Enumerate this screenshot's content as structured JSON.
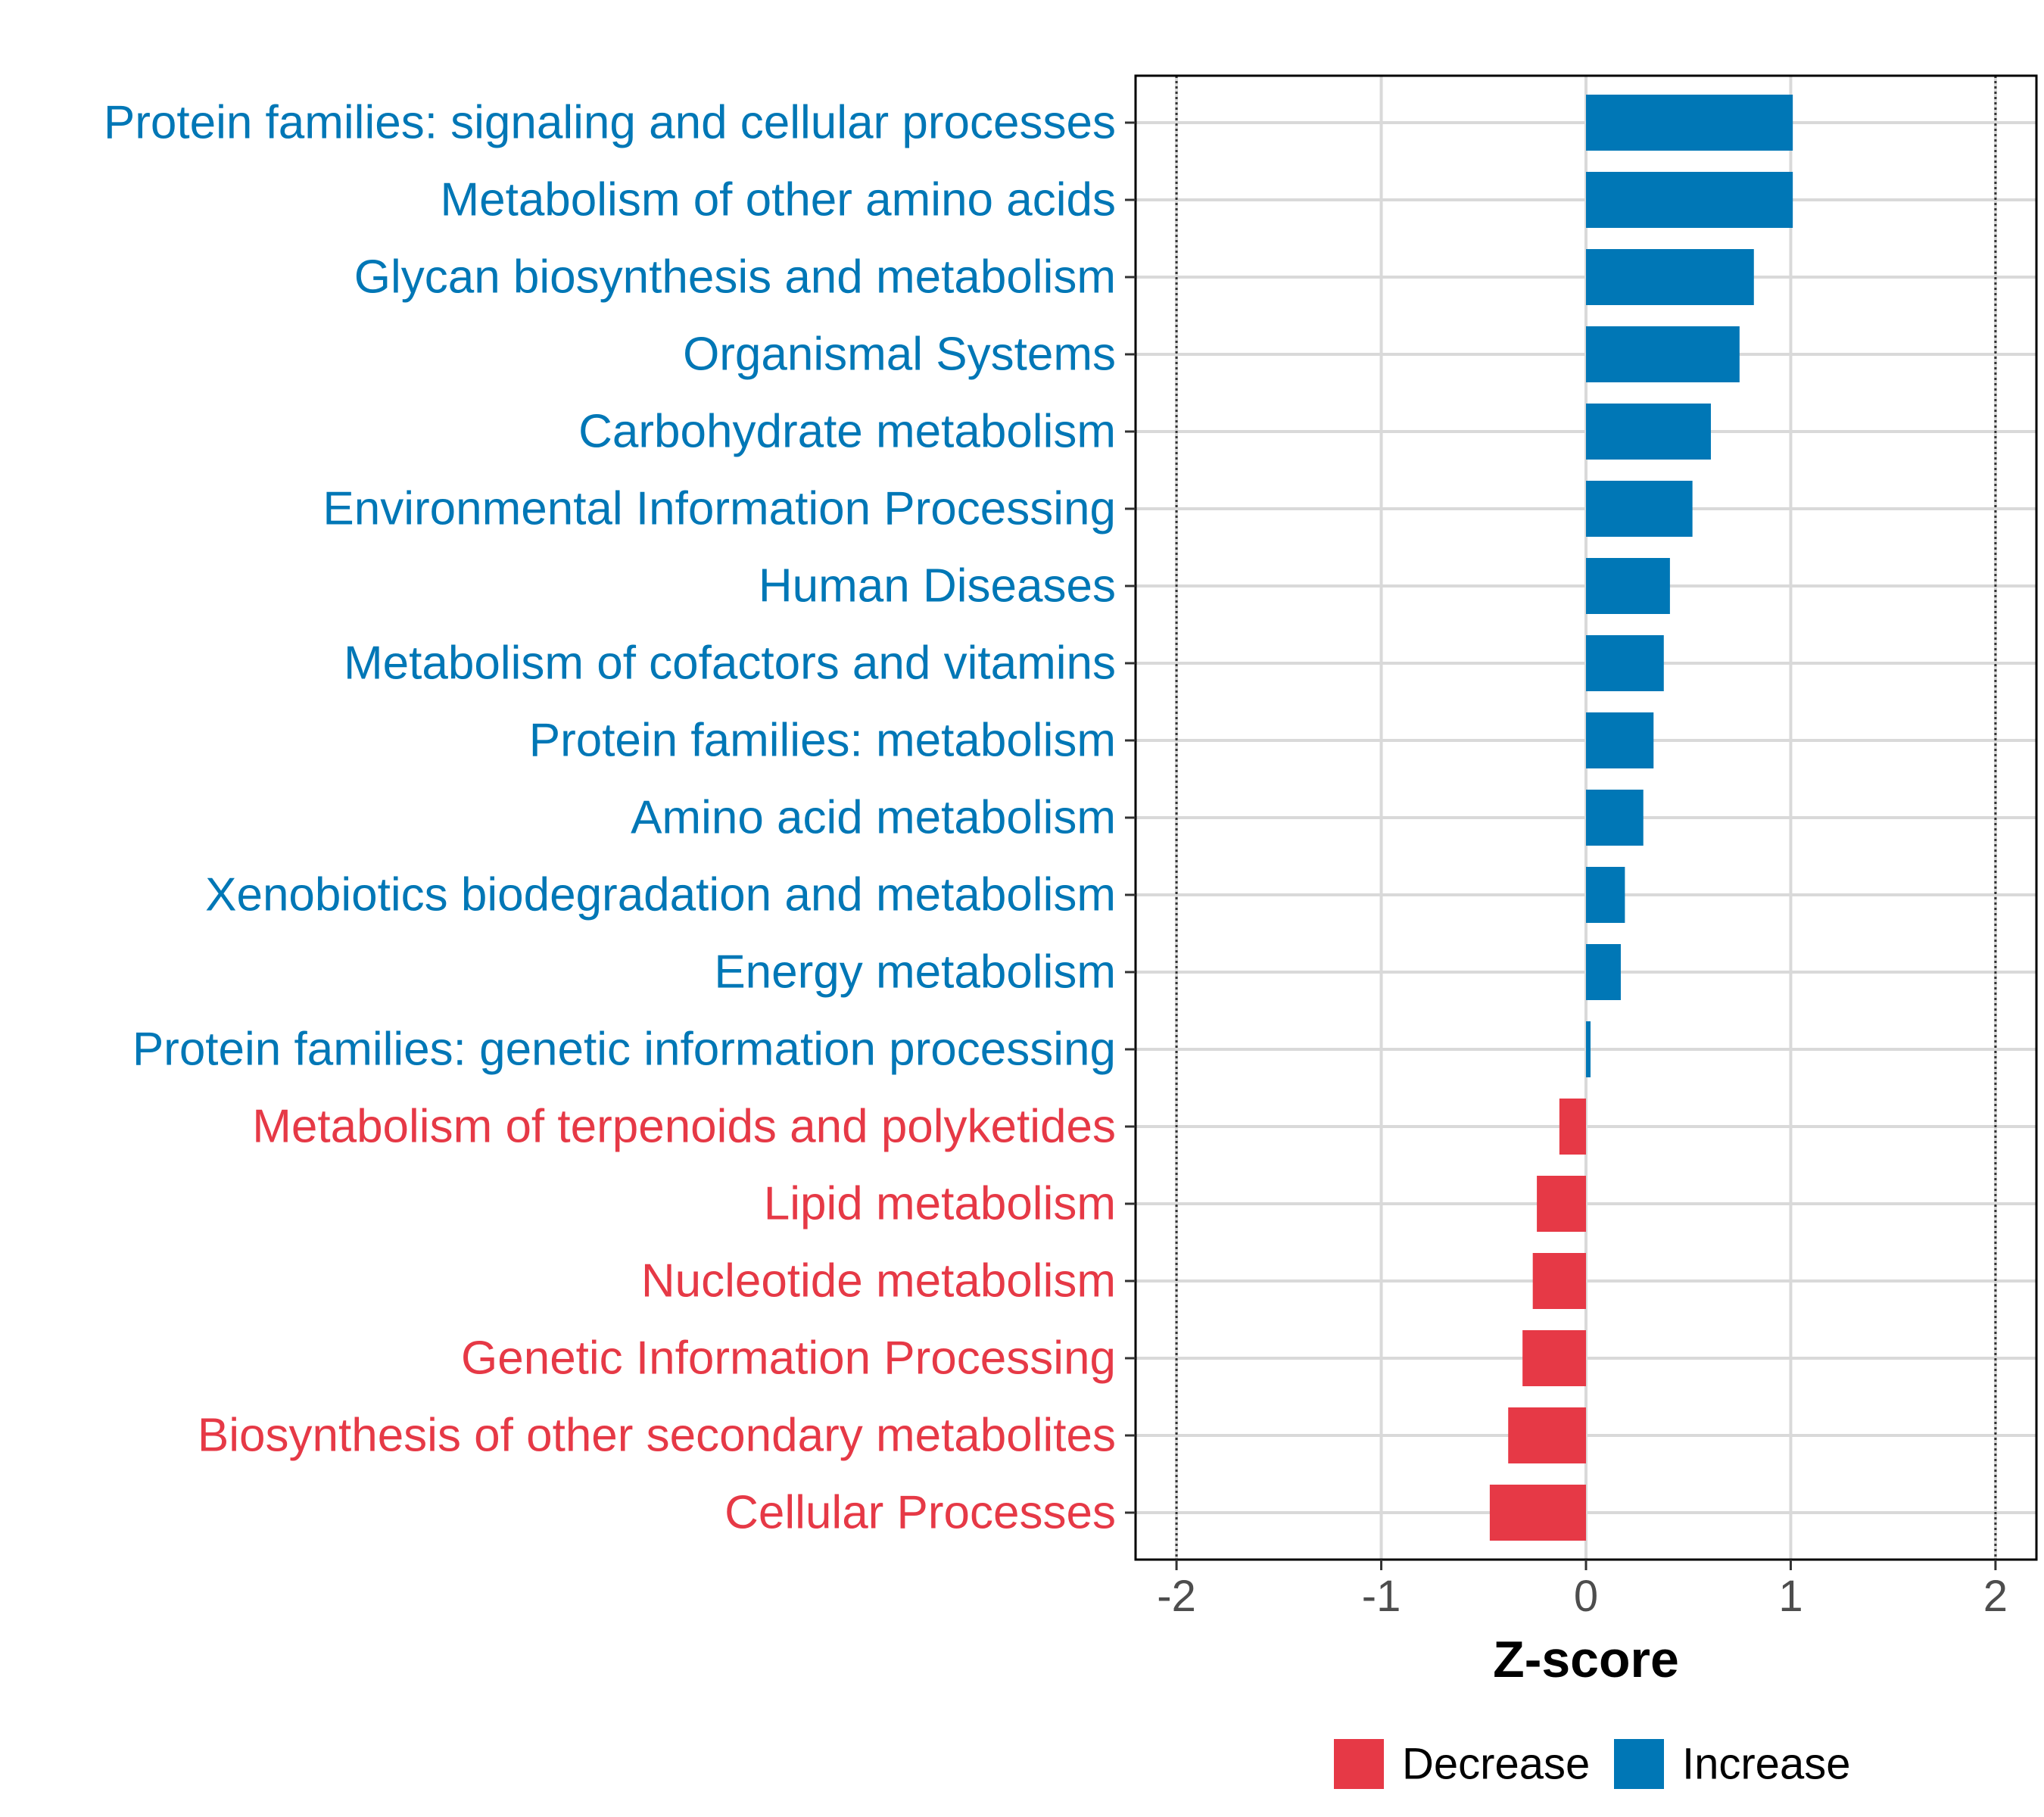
{
  "chart_data": {
    "type": "bar",
    "orientation": "horizontal",
    "title": "",
    "xlabel": "Z-score",
    "ylabel": "",
    "xlim": [
      -2.2,
      2.2
    ],
    "xticks": [
      -2,
      -1,
      0,
      1,
      2
    ],
    "xtick_labels": [
      "-2",
      "-1",
      "0",
      "1",
      "2"
    ],
    "reference_lines": [
      -2,
      2
    ],
    "grid": true,
    "legend_position": "bottom",
    "colors": {
      "Decrease": "#e63946",
      "Increase": "#0077b6"
    },
    "legend": [
      "Decrease",
      "Increase"
    ],
    "categories": [
      "Protein families: signaling and cellular processes",
      "Metabolism of other amino acids",
      "Glycan biosynthesis and metabolism",
      "Organismal Systems",
      "Carbohydrate metabolism",
      "Environmental Information Processing",
      "Human Diseases",
      "Metabolism of cofactors and vitamins",
      "Protein families: metabolism",
      "Amino acid metabolism",
      "Xenobiotics biodegradation and metabolism",
      "Energy metabolism",
      "Protein families: genetic information processing",
      "Metabolism of terpenoids and polyketides",
      "Lipid metabolism",
      "Nucleotide metabolism",
      "Genetic Information Processing",
      "Biosynthesis of other secondary metabolites",
      "Cellular Processes"
    ],
    "values": [
      1.01,
      1.01,
      0.82,
      0.75,
      0.61,
      0.52,
      0.41,
      0.38,
      0.33,
      0.28,
      0.19,
      0.17,
      0.02,
      -0.13,
      -0.24,
      -0.26,
      -0.31,
      -0.38,
      -0.47
    ],
    "groups": [
      "Increase",
      "Increase",
      "Increase",
      "Increase",
      "Increase",
      "Increase",
      "Increase",
      "Increase",
      "Increase",
      "Increase",
      "Increase",
      "Increase",
      "Increase",
      "Decrease",
      "Decrease",
      "Decrease",
      "Decrease",
      "Decrease",
      "Decrease"
    ]
  }
}
